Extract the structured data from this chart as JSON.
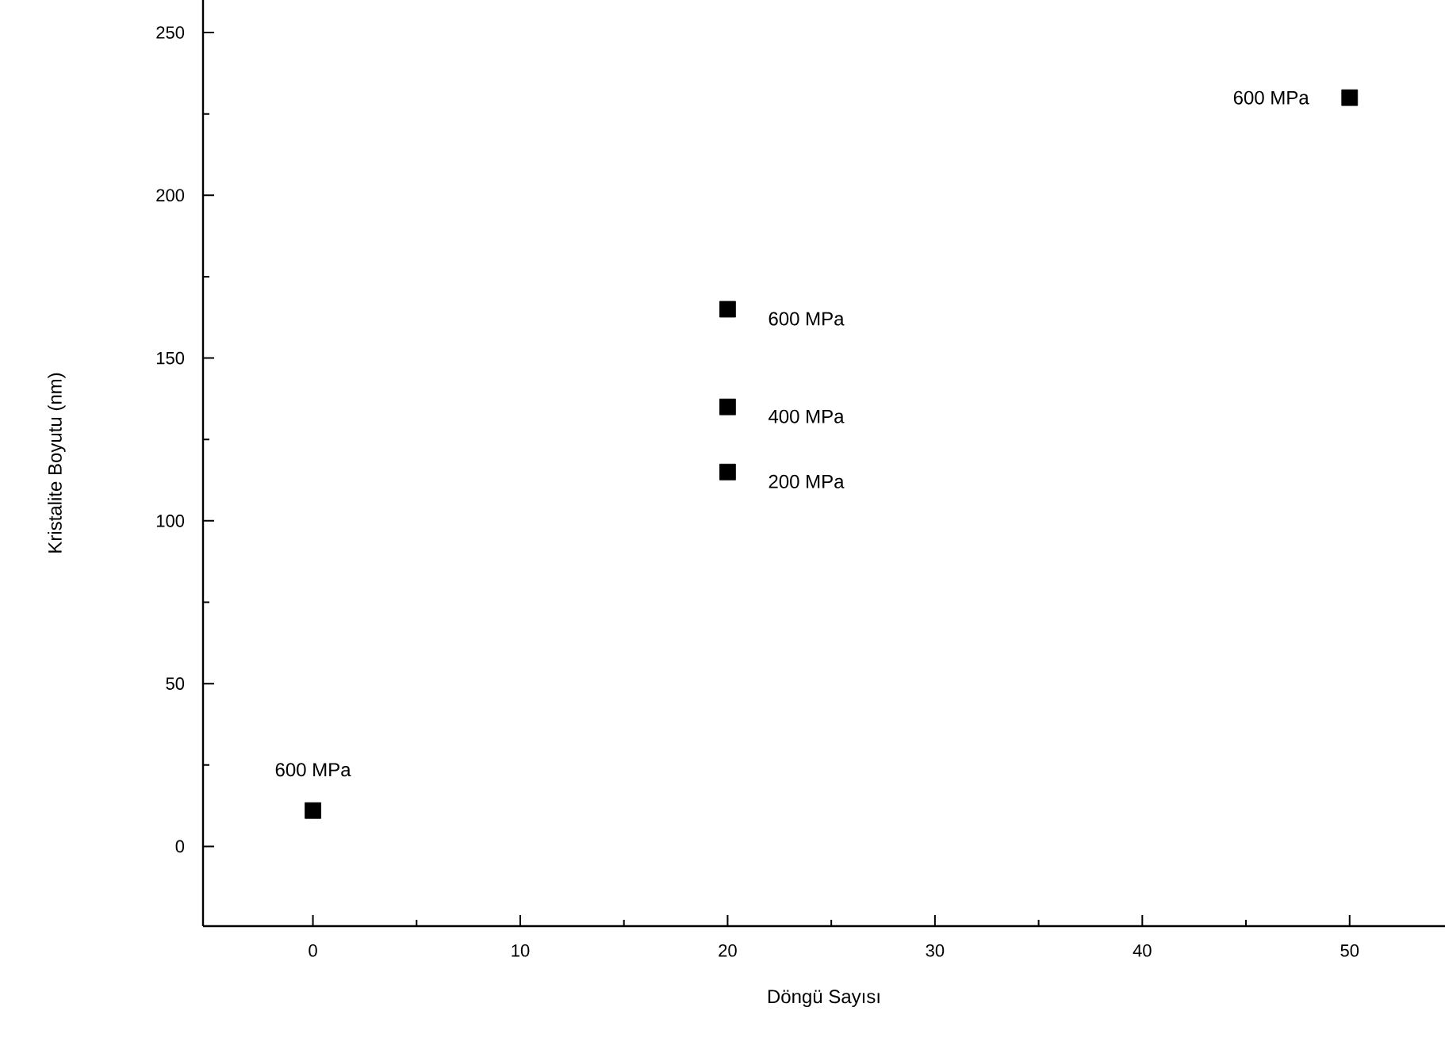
{
  "chart_data": {
    "type": "scatter",
    "xlabel": "Döngü Sayısı",
    "ylabel": "Kristalite Boyutu (nm)",
    "x": [
      0,
      20,
      20,
      20,
      50
    ],
    "series": [
      {
        "color": "#000000",
        "values": [
          11,
          165,
          135,
          115,
          230
        ]
      }
    ],
    "marker": "square",
    "grid": false,
    "xlim": [
      -5.3,
      54.6
    ],
    "xticks": [
      0,
      10,
      20,
      30,
      40,
      50
    ],
    "ylim": [
      -24.5,
      260
    ],
    "yticks": [
      0,
      50,
      100,
      150,
      200,
      250
    ],
    "annotations": [
      {
        "text": "600 MPa",
        "x": 0,
        "y": 11
      },
      {
        "text": "600 MPa",
        "x": 20,
        "y": 165
      },
      {
        "text": "400 MPa",
        "x": 20,
        "y": 135
      },
      {
        "text": "200 MPa",
        "x": 20,
        "y": 115
      },
      {
        "text": "600 MPa",
        "x": 50,
        "y": 230
      }
    ]
  }
}
